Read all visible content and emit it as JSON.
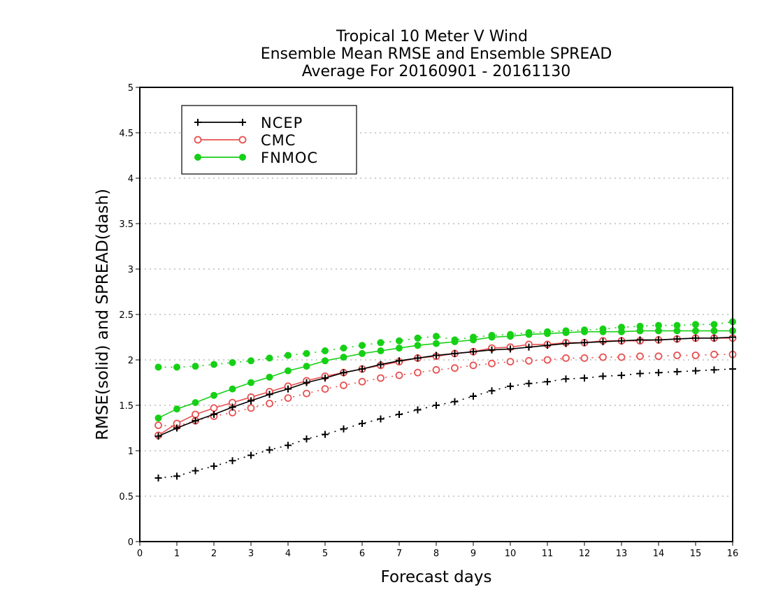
{
  "chart_data": {
    "type": "line",
    "title": [
      "Tropical 10 Meter V Wind",
      "Ensemble Mean RMSE and Ensemble SPREAD",
      "Average For 20160901 - 20161130"
    ],
    "xlabel": "Forecast days",
    "ylabel": "RMSE(solid) and SPREAD(dash)",
    "xlim": [
      0,
      16
    ],
    "ylim": [
      0,
      5
    ],
    "xticks": [
      "0",
      "1",
      "2",
      "3",
      "4",
      "5",
      "6",
      "7",
      "8",
      "9",
      "10",
      "11",
      "12",
      "13",
      "14",
      "15",
      "16"
    ],
    "yticks": [
      "0",
      "0.5",
      "1",
      "1.5",
      "2",
      "2.5",
      "3",
      "3.5",
      "4",
      "4.5",
      "5"
    ],
    "grid": "horizontal dotted",
    "legend_position": "top-left",
    "x": [
      0.5,
      1,
      1.5,
      2,
      2.5,
      3,
      3.5,
      4,
      4.5,
      5,
      5.5,
      6,
      6.5,
      7,
      7.5,
      8,
      8.5,
      9,
      9.5,
      10,
      10.5,
      11,
      11.5,
      12,
      12.5,
      13,
      13.5,
      14,
      14.5,
      15,
      15.5,
      16
    ],
    "series": [
      {
        "name": "NCEP",
        "color": "#000000",
        "marker": "plus",
        "rmse": [
          1.16,
          1.25,
          1.33,
          1.4,
          1.48,
          1.55,
          1.62,
          1.68,
          1.75,
          1.8,
          1.86,
          1.9,
          1.95,
          1.99,
          2.02,
          2.05,
          2.07,
          2.09,
          2.11,
          2.12,
          2.14,
          2.16,
          2.18,
          2.19,
          2.2,
          2.21,
          2.22,
          2.22,
          2.23,
          2.24,
          2.24,
          2.25
        ],
        "spread": [
          0.7,
          0.72,
          0.78,
          0.83,
          0.89,
          0.95,
          1.01,
          1.06,
          1.13,
          1.18,
          1.24,
          1.3,
          1.35,
          1.4,
          1.45,
          1.5,
          1.54,
          1.6,
          1.66,
          1.71,
          1.74,
          1.76,
          1.79,
          1.8,
          1.82,
          1.83,
          1.85,
          1.86,
          1.87,
          1.88,
          1.89,
          1.9
        ]
      },
      {
        "name": "CMC",
        "color": "#e85050",
        "marker": "open-circle",
        "rmse": [
          1.17,
          1.3,
          1.4,
          1.47,
          1.53,
          1.59,
          1.65,
          1.71,
          1.77,
          1.82,
          1.86,
          1.9,
          1.94,
          1.98,
          2.02,
          2.04,
          2.07,
          2.09,
          2.13,
          2.14,
          2.17,
          2.17,
          2.19,
          2.19,
          2.21,
          2.21,
          2.21,
          2.22,
          2.23,
          2.24,
          2.24,
          2.24
        ],
        "spread": [
          1.28,
          1.27,
          1.33,
          1.38,
          1.42,
          1.47,
          1.52,
          1.58,
          1.63,
          1.68,
          1.72,
          1.76,
          1.8,
          1.83,
          1.86,
          1.89,
          1.91,
          1.94,
          1.96,
          1.98,
          1.99,
          2.0,
          2.02,
          2.02,
          2.03,
          2.03,
          2.04,
          2.04,
          2.05,
          2.05,
          2.06,
          2.06
        ]
      },
      {
        "name": "FNMOC",
        "color": "#16d016",
        "marker": "filled-circle",
        "rmse": [
          1.36,
          1.46,
          1.53,
          1.61,
          1.68,
          1.75,
          1.81,
          1.88,
          1.93,
          1.99,
          2.03,
          2.07,
          2.1,
          2.13,
          2.16,
          2.18,
          2.2,
          2.22,
          2.25,
          2.26,
          2.28,
          2.29,
          2.3,
          2.31,
          2.31,
          2.31,
          2.32,
          2.32,
          2.32,
          2.32,
          2.32,
          2.32
        ],
        "spread": [
          1.92,
          1.92,
          1.93,
          1.95,
          1.97,
          1.99,
          2.02,
          2.05,
          2.07,
          2.1,
          2.13,
          2.16,
          2.19,
          2.21,
          2.24,
          2.26,
          2.22,
          2.25,
          2.27,
          2.28,
          2.3,
          2.31,
          2.32,
          2.33,
          2.34,
          2.36,
          2.37,
          2.38,
          2.38,
          2.39,
          2.39,
          2.42
        ]
      }
    ]
  }
}
